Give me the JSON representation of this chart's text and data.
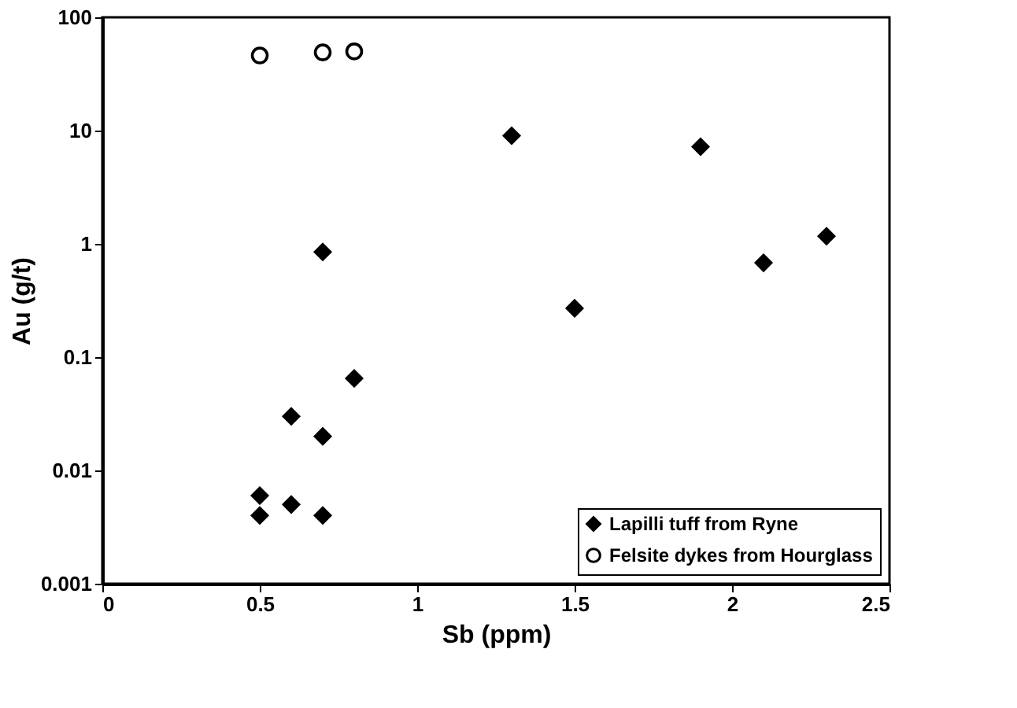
{
  "chart_data": {
    "type": "scatter",
    "xlabel": "Sb (ppm)",
    "ylabel": "Au (g/t)",
    "log": "y",
    "xlim": [
      0,
      2.5
    ],
    "xticks": [
      0,
      0.5,
      1,
      1.5,
      2,
      2.5
    ],
    "ylim": [
      0.001,
      100
    ],
    "yticks": [
      0.001,
      0.01,
      0.1,
      1,
      10,
      100
    ],
    "grid": false,
    "legend": "bottom right",
    "series": [
      {
        "name": "Lapilli tuff from Ryne",
        "color": "#000000",
        "marker": "diamond",
        "x": [
          0.5,
          0.5,
          0.6,
          0.6,
          0.7,
          0.7,
          0.7,
          0.8,
          1.3,
          1.5,
          1.9,
          2.1,
          2.3
        ],
        "values": [
          0.006,
          0.004,
          0.005,
          0.03,
          0.02,
          0.004,
          0.85,
          0.065,
          9,
          0.27,
          7.2,
          0.68,
          1.17
        ]
      },
      {
        "name": "Felsite dykes from Hourglass",
        "color": "#000000",
        "marker": "circle",
        "x": [
          0.5,
          0.7,
          0.8
        ],
        "values": [
          46,
          49,
          50
        ]
      }
    ]
  }
}
